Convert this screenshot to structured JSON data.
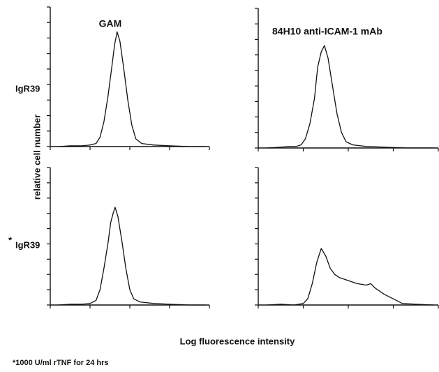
{
  "figure": {
    "y_label": "relative cell number",
    "x_label": "Log fluorescence intensity",
    "row_labels": [
      "IgR39",
      "IgR39"
    ],
    "asterisk": "*",
    "footnote": "*1000 U/ml rTNF for 24 hrs"
  },
  "chart_data": [
    {
      "type": "line",
      "title": "GAM",
      "color": "#111111",
      "x": [
        0.2,
        0.5,
        0.8,
        1.0,
        1.15,
        1.25,
        1.35,
        1.45,
        1.55,
        1.62,
        1.68,
        1.75,
        1.85,
        1.95,
        2.05,
        2.15,
        2.3,
        2.6,
        3.0,
        3.5,
        3.9
      ],
      "values": [
        0,
        0.5,
        0.5,
        1,
        2,
        6,
        16,
        32,
        52,
        66,
        74,
        68,
        50,
        30,
        14,
        5,
        2,
        1,
        0.5,
        0,
        0
      ],
      "xlim": [
        0,
        4
      ],
      "ylim": [
        0,
        90
      ],
      "xticks": [
        0,
        1,
        2,
        3,
        4
      ],
      "yticks": [
        0,
        10,
        20,
        30,
        40,
        50,
        60,
        70,
        80,
        90
      ]
    },
    {
      "type": "line",
      "title": "84H10  anti-ICAM-1 mAb",
      "color": "#111111",
      "x": [
        0.2,
        0.5,
        0.7,
        0.85,
        0.95,
        1.05,
        1.15,
        1.25,
        1.32,
        1.4,
        1.47,
        1.55,
        1.65,
        1.75,
        1.85,
        1.95,
        2.1,
        2.4,
        2.8,
        3.3,
        3.9
      ],
      "values": [
        0,
        0.5,
        1,
        1,
        2,
        6,
        16,
        32,
        52,
        62,
        66,
        58,
        40,
        22,
        10,
        4,
        2,
        1,
        0.5,
        0,
        0
      ],
      "xlim": [
        0,
        4
      ],
      "ylim": [
        0,
        90
      ],
      "xticks": [
        0,
        1,
        2,
        3,
        4
      ],
      "yticks": [
        0,
        10,
        20,
        30,
        40,
        50,
        60,
        70,
        80,
        90
      ]
    },
    {
      "type": "line",
      "color": "#111111",
      "x": [
        0.2,
        0.5,
        0.8,
        1.0,
        1.15,
        1.25,
        1.35,
        1.45,
        1.52,
        1.58,
        1.63,
        1.7,
        1.8,
        1.9,
        2.0,
        2.1,
        2.25,
        2.6,
        3.0,
        3.5,
        3.9
      ],
      "values": [
        0,
        0.5,
        0.5,
        1,
        3,
        10,
        24,
        40,
        54,
        60,
        64,
        58,
        42,
        24,
        10,
        4,
        2,
        1,
        0.5,
        0,
        0
      ],
      "xlim": [
        0,
        4
      ],
      "ylim": [
        0,
        90
      ],
      "xticks": [
        0,
        1,
        2,
        3,
        4
      ],
      "yticks": [
        0,
        10,
        20,
        30,
        40,
        50,
        60,
        70,
        80,
        90
      ]
    },
    {
      "type": "line",
      "color": "#111111",
      "x": [
        0.2,
        0.5,
        0.8,
        1.0,
        1.1,
        1.2,
        1.3,
        1.4,
        1.5,
        1.6,
        1.7,
        1.8,
        2.0,
        2.2,
        2.4,
        2.5,
        2.6,
        2.8,
        3.0,
        3.2,
        3.5,
        3.9
      ],
      "values": [
        0,
        0.5,
        0,
        1,
        4,
        14,
        28,
        37,
        32,
        24,
        20,
        18,
        16,
        14,
        13,
        14,
        11,
        7,
        4,
        1,
        0.5,
        0
      ],
      "xlim": [
        0,
        4
      ],
      "ylim": [
        0,
        90
      ],
      "xticks": [
        0,
        1,
        2,
        3,
        4
      ],
      "yticks": [
        0,
        10,
        20,
        30,
        40,
        50,
        60,
        70,
        80,
        90
      ]
    }
  ]
}
